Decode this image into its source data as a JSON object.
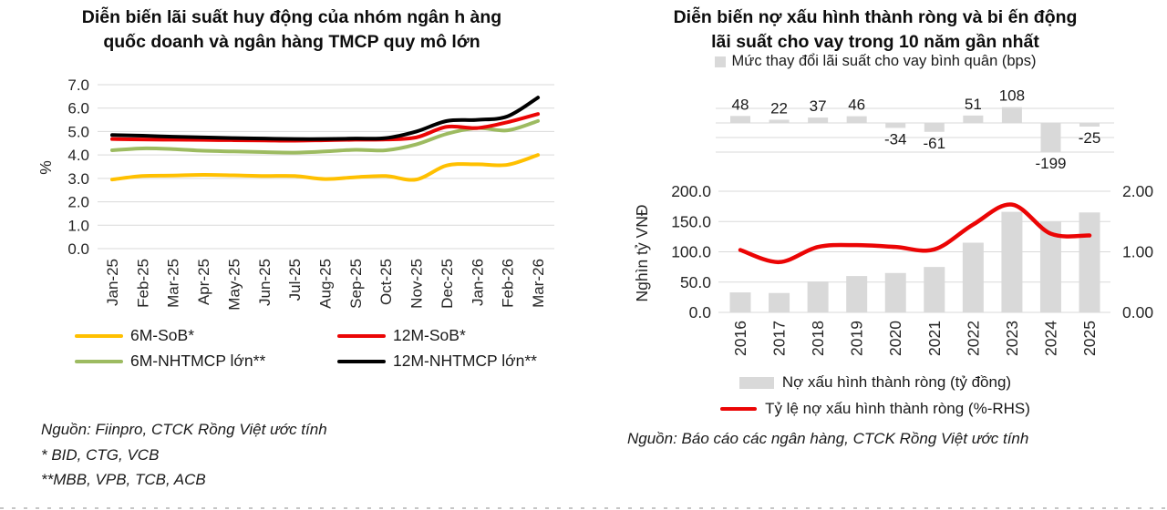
{
  "chart_data": [
    {
      "id": "deposit-rates",
      "type": "line",
      "title": "Diễn biến lãi suất huy động của nhóm ngân h àng quốc doanh và ngân hàng TMCP quy mô lớn",
      "title_lines": [
        "Diễn biến lãi suất huy động của nhóm ngân h àng",
        "quốc doanh và ngân hàng TMCP quy mô lớn"
      ],
      "ylabel": "%",
      "ylim": [
        0.0,
        7.0
      ],
      "ytick_labels": [
        "7.0",
        "6.0",
        "5.0",
        "4.0",
        "3.0",
        "2.0",
        "1.0",
        "0.0"
      ],
      "grid": true,
      "legend_position": "bottom",
      "categories": [
        "Jan-25",
        "Feb-25",
        "Mar-25",
        "Apr-25",
        "May-25",
        "Jun-25",
        "Jul-25",
        "Aug-25",
        "Sep-25",
        "Oct-25",
        "Nov-25",
        "Dec-25",
        "Jan-26",
        "Feb-26",
        "Mar-26"
      ],
      "series": [
        {
          "name": "6M-SoB*",
          "color": "#FFC000",
          "values": [
            2.95,
            3.1,
            3.12,
            3.15,
            3.13,
            3.1,
            3.1,
            2.97,
            3.05,
            3.1,
            2.95,
            3.55,
            3.6,
            3.58,
            4.0
          ]
        },
        {
          "name": "6M-NHTMCP lớn**",
          "color": "#9DBB61",
          "values": [
            4.2,
            4.28,
            4.25,
            4.18,
            4.15,
            4.12,
            4.1,
            4.15,
            4.22,
            4.2,
            4.45,
            4.9,
            5.15,
            5.05,
            5.45
          ]
        },
        {
          "name": "12M-SoB*",
          "color": "#EB0505",
          "values": [
            4.68,
            4.66,
            4.65,
            4.64,
            4.63,
            4.62,
            4.61,
            4.63,
            4.65,
            4.66,
            4.75,
            5.2,
            5.15,
            5.4,
            5.75
          ]
        },
        {
          "name": "12M-NHTMCP lớn**",
          "color": "#000000",
          "values": [
            4.85,
            4.82,
            4.78,
            4.75,
            4.72,
            4.7,
            4.68,
            4.68,
            4.7,
            4.72,
            5.0,
            5.45,
            5.5,
            5.65,
            6.45
          ]
        }
      ],
      "source_lines": [
        "Nguồn: Fiinpro, CTCK Rồng Việt ước tính",
        "* BID, CTG, VCB",
        "**MBB, VPB, TCB, ACB"
      ]
    },
    {
      "id": "npl-panel",
      "title": "Diễn biến nợ xấu hình thành ròng và bi ến động lãi suất cho vay trong 10 năm gần nhất",
      "title_lines": [
        "Diễn biến nợ xấu hình thành ròng và bi ến động",
        "lãi suất cho vay trong 10 năm gần nhất"
      ],
      "categories": [
        "2016",
        "2017",
        "2018",
        "2019",
        "2020",
        "2021",
        "2022",
        "2023",
        "2024",
        "2025"
      ],
      "subcharts": [
        {
          "type": "bar",
          "legend": "Mức thay đổi lãi suất cho vay bình quân (bps)",
          "bar_color": "#D9D9D9",
          "values": [
            48,
            22,
            37,
            46,
            -34,
            -61,
            51,
            108,
            -199,
            -25
          ],
          "ylim": [
            -230,
            120
          ],
          "gridline_values": [
            100,
            0,
            -100,
            -200
          ]
        },
        {
          "type": "combo",
          "left_axis": {
            "title": "Nghìn tỷ VNĐ",
            "tick_labels": [
              "200.0",
              "150.0",
              "100.0",
              "50.0",
              "0.0"
            ],
            "lim": [
              0,
              200
            ]
          },
          "right_axis": {
            "tick_labels": [
              "2.00",
              "1.00",
              "0.00"
            ],
            "lim": [
              0,
              2
            ]
          },
          "bar_series": {
            "name": "Nợ xấu hình thành ròng (tỷ đồng)",
            "color": "#D9D9D9",
            "values": [
              33,
              32,
              51,
              60,
              65,
              75,
              115,
              166,
              150,
              165
            ]
          },
          "line_series": {
            "name": "Tỷ lệ nợ xấu hình thành ròng (%-RHS)",
            "color": "#EB0505",
            "values": [
              1.03,
              0.83,
              1.08,
              1.11,
              1.08,
              1.04,
              1.45,
              1.78,
              1.3,
              1.27
            ]
          }
        }
      ],
      "source_lines": [
        "Nguồn: Báo cáo các ngân hàng, CTCK Rồng Việt ước tính"
      ]
    }
  ],
  "style": {
    "gridline_color": "#D9D9D9",
    "tick_text_color": "#262626"
  }
}
